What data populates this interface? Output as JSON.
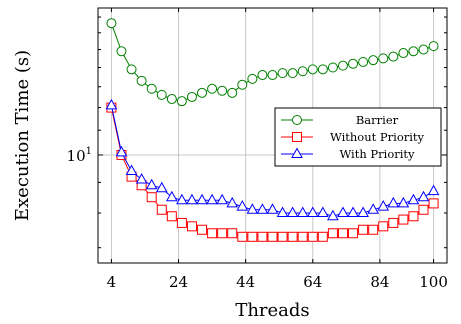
{
  "chart_data": {
    "type": "line",
    "xlabel": "Threads",
    "ylabel": "Execution Time (s)",
    "y_scale": "log",
    "xlim": [
      0,
      104
    ],
    "ylim": [
      6.6,
      17.6
    ],
    "x_ticks": [
      4,
      24,
      44,
      64,
      84,
      100
    ],
    "y_ticks": [
      {
        "value": 10,
        "base": "10",
        "exp": "1"
      }
    ],
    "grid": true,
    "legend_position": "right",
    "x": [
      4,
      7,
      10,
      13,
      16,
      19,
      22,
      25,
      28,
      31,
      34,
      37,
      40,
      43,
      46,
      49,
      52,
      55,
      58,
      61,
      64,
      67,
      70,
      73,
      76,
      79,
      82,
      85,
      88,
      91,
      94,
      97,
      100
    ],
    "series": [
      {
        "name": "Barrier",
        "color": "#008000",
        "marker": "circle",
        "values": [
          16.6,
          14.9,
          13.9,
          13.3,
          12.9,
          12.6,
          12.4,
          12.3,
          12.5,
          12.7,
          12.9,
          12.8,
          12.7,
          13.1,
          13.4,
          13.6,
          13.6,
          13.7,
          13.7,
          13.8,
          13.9,
          13.9,
          14.0,
          14.1,
          14.2,
          14.3,
          14.4,
          14.5,
          14.6,
          14.8,
          14.9,
          15.0,
          15.2
        ]
      },
      {
        "name": "Without Priority",
        "color": "#ff0000",
        "marker": "square",
        "values": [
          12.0,
          10.0,
          9.2,
          8.9,
          8.5,
          8.1,
          7.9,
          7.7,
          7.6,
          7.5,
          7.4,
          7.4,
          7.4,
          7.3,
          7.3,
          7.3,
          7.3,
          7.3,
          7.3,
          7.3,
          7.3,
          7.3,
          7.4,
          7.4,
          7.4,
          7.5,
          7.5,
          7.6,
          7.7,
          7.8,
          7.9,
          8.1,
          8.3
        ]
      },
      {
        "name": "With Priority",
        "color": "#0000ff",
        "marker": "triangle",
        "values": [
          12.1,
          10.1,
          9.4,
          9.1,
          8.9,
          8.8,
          8.5,
          8.4,
          8.4,
          8.4,
          8.4,
          8.4,
          8.3,
          8.2,
          8.1,
          8.1,
          8.1,
          8.0,
          8.0,
          8.0,
          8.0,
          8.0,
          7.9,
          8.0,
          8.0,
          8.0,
          8.1,
          8.2,
          8.3,
          8.3,
          8.4,
          8.5,
          8.7
        ]
      }
    ]
  }
}
